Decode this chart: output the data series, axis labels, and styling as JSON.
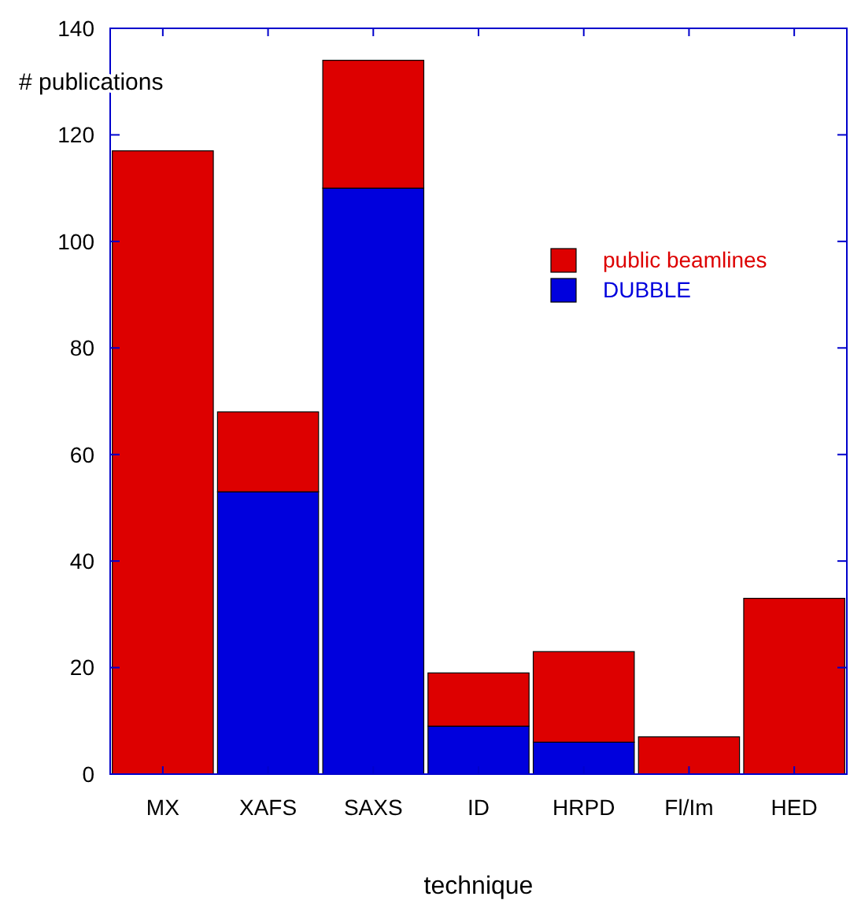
{
  "chart_data": {
    "type": "bar",
    "xlabel": "technique",
    "ylabel": "# publications",
    "categories": [
      "MX",
      "XAFS",
      "SAXS",
      "ID",
      "HRPD",
      "Fl/Im",
      "HED"
    ],
    "stacked": true,
    "series": [
      {
        "name": "DUBBLE",
        "color": "#0000dd",
        "values": [
          0,
          53,
          110,
          9,
          6,
          0,
          0
        ]
      },
      {
        "name": "public beamlines",
        "color": "#dd0000",
        "values": [
          117,
          15,
          24,
          10,
          17,
          7,
          33
        ]
      }
    ],
    "ylim": [
      0,
      140
    ],
    "yticks": [
      0,
      20,
      40,
      60,
      80,
      100,
      120,
      140
    ],
    "grid": false,
    "legend": "top right"
  }
}
